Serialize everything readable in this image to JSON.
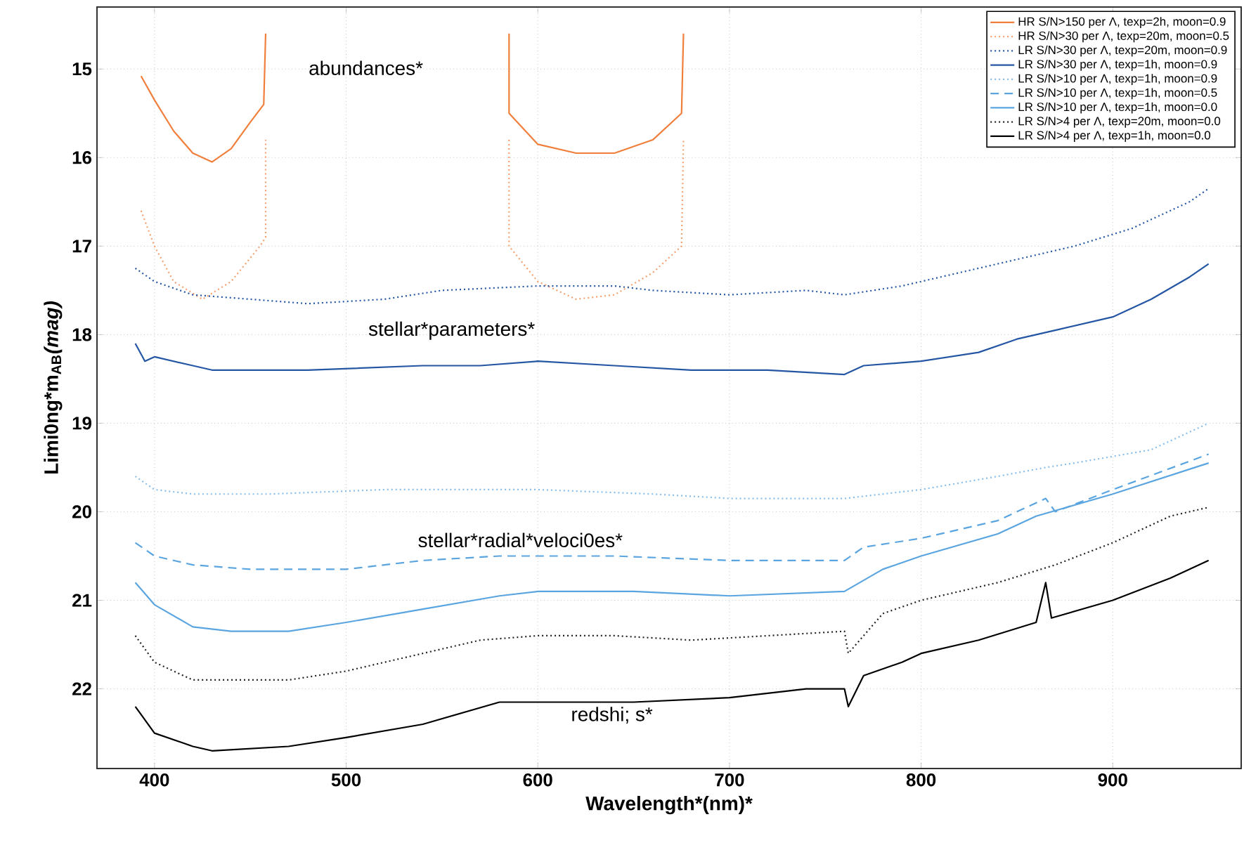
{
  "chart_data": {
    "type": "line",
    "xlabel": "Wavelength*(nm)*",
    "ylabel": "Limi0ng*m$_{AB}$*(mag)*",
    "xlim": [
      370,
      967
    ],
    "ylim": [
      22.9,
      14.3
    ],
    "xticks": [
      400,
      500,
      600,
      700,
      800,
      900
    ],
    "yticks": [
      15,
      16,
      17,
      18,
      19,
      20,
      21,
      22
    ],
    "grid": true,
    "legend": "top right",
    "marker": "none",
    "annotations": [
      "abundances*",
      "stellar*parameters*",
      "stellar*radial*veloci0es*",
      "redshi; s*"
    ],
    "series": [
      {
        "name": "HR S/N>150 per Λ, texp=2h, moon=0.9",
        "color": "#f07f3c",
        "line_style": "solid",
        "x": [
          393,
          400,
          410,
          420,
          430,
          440,
          450,
          457,
          458,
          520,
          585,
          585,
          600,
          620,
          640,
          660,
          675,
          676
        ],
        "values": [
          15.08,
          15.35,
          15.7,
          15.95,
          16.05,
          15.9,
          15.6,
          15.4,
          14.6,
          null,
          14.6,
          15.5,
          15.85,
          15.95,
          15.95,
          15.8,
          15.5,
          14.6
        ]
      },
      {
        "name": "HR S/N>30 per Λ, texp=20m, moon=0.5",
        "color": "#f5a06e",
        "line_style": "dotted",
        "x": [
          393,
          400,
          410,
          425,
          440,
          455,
          458,
          458,
          520,
          585,
          585,
          600,
          620,
          640,
          660,
          675,
          676
        ],
        "values": [
          16.6,
          17.0,
          17.4,
          17.6,
          17.4,
          17.0,
          16.9,
          15.8,
          null,
          15.8,
          17.0,
          17.4,
          17.6,
          17.55,
          17.3,
          17.0,
          15.8
        ]
      },
      {
        "name": "LR S/N>30 per Λ,  texp=20m, moon=0.9",
        "color": "#2456a4",
        "line_style": "dotted",
        "x": [
          390,
          400,
          420,
          450,
          480,
          520,
          550,
          600,
          640,
          660,
          700,
          740,
          760,
          790,
          820,
          850,
          880,
          910,
          940,
          950
        ],
        "values": [
          17.25,
          17.4,
          17.55,
          17.6,
          17.65,
          17.6,
          17.5,
          17.45,
          17.45,
          17.5,
          17.55,
          17.5,
          17.55,
          17.45,
          17.3,
          17.15,
          17.0,
          16.8,
          16.5,
          16.35
        ]
      },
      {
        "name": "LR S/N>30 per Λ,  texp=1h, moon=0.9",
        "color": "#2456a4",
        "line_style": "solid",
        "x": [
          390,
          395,
          400,
          420,
          430,
          480,
          540,
          570,
          600,
          640,
          680,
          720,
          760,
          770,
          800,
          830,
          850,
          870,
          900,
          920,
          940,
          950
        ],
        "values": [
          18.1,
          18.3,
          18.25,
          18.35,
          18.4,
          18.4,
          18.35,
          18.35,
          18.3,
          18.35,
          18.4,
          18.4,
          18.45,
          18.35,
          18.3,
          18.2,
          18.05,
          17.95,
          17.8,
          17.6,
          17.35,
          17.2
        ]
      },
      {
        "name": "LR S/N>10 per Λ,  texp=1h, moon=0.9",
        "color": "#86bdea",
        "line_style": "dotted",
        "x": [
          390,
          400,
          420,
          460,
          520,
          600,
          660,
          700,
          760,
          800,
          840,
          865,
          880,
          920,
          950
        ],
        "values": [
          19.6,
          19.75,
          19.8,
          19.8,
          19.75,
          19.75,
          19.8,
          19.85,
          19.85,
          19.75,
          19.6,
          19.5,
          19.45,
          19.3,
          19.0
        ]
      },
      {
        "name": "LR S/N>10 per Λ,  texp=1h, moon=0.5",
        "color": "#5aa5e0",
        "line_style": "dashed",
        "x": [
          390,
          400,
          420,
          450,
          500,
          540,
          580,
          640,
          700,
          760,
          770,
          800,
          840,
          865,
          870,
          900,
          950
        ],
        "values": [
          20.35,
          20.5,
          20.6,
          20.65,
          20.65,
          20.55,
          20.5,
          20.5,
          20.55,
          20.55,
          20.4,
          20.3,
          20.1,
          19.85,
          20.0,
          19.75,
          19.35
        ]
      },
      {
        "name": "LR S/N>10 per Λ,  texp=1h, moon=0.0",
        "color": "#5aa5e0",
        "line_style": "solid",
        "x": [
          390,
          400,
          420,
          440,
          470,
          500,
          540,
          580,
          600,
          650,
          700,
          760,
          780,
          800,
          840,
          860,
          900,
          950
        ],
        "values": [
          20.8,
          21.05,
          21.3,
          21.35,
          21.35,
          21.25,
          21.1,
          20.95,
          20.9,
          20.9,
          20.95,
          20.9,
          20.65,
          20.5,
          20.25,
          20.05,
          19.8,
          19.45
        ]
      },
      {
        "name": "LR S/N>4  per Λ,  texp=20m, moon=0.0",
        "color": "#222222",
        "line_style": "dotted",
        "x": [
          390,
          400,
          420,
          470,
          500,
          540,
          570,
          600,
          640,
          680,
          720,
          760,
          762,
          780,
          800,
          840,
          870,
          900,
          930,
          950
        ],
        "values": [
          21.4,
          21.7,
          21.9,
          21.9,
          21.8,
          21.6,
          21.45,
          21.4,
          21.4,
          21.45,
          21.4,
          21.35,
          21.6,
          21.15,
          21.0,
          20.8,
          20.6,
          20.35,
          20.05,
          19.95
        ]
      },
      {
        "name": "LR S/N>4  per Λ,   texp=1h, moon=0.0",
        "color": "#000000",
        "line_style": "solid",
        "x": [
          390,
          400,
          420,
          430,
          470,
          500,
          540,
          580,
          650,
          700,
          740,
          760,
          762,
          770,
          790,
          800,
          830,
          860,
          865,
          868,
          900,
          930,
          950
        ],
        "values": [
          22.2,
          22.5,
          22.65,
          22.7,
          22.65,
          22.55,
          22.4,
          22.15,
          22.15,
          22.1,
          22.0,
          22.0,
          22.2,
          21.85,
          21.7,
          21.6,
          21.45,
          21.25,
          20.8,
          21.2,
          21.0,
          20.75,
          20.55
        ]
      }
    ]
  }
}
